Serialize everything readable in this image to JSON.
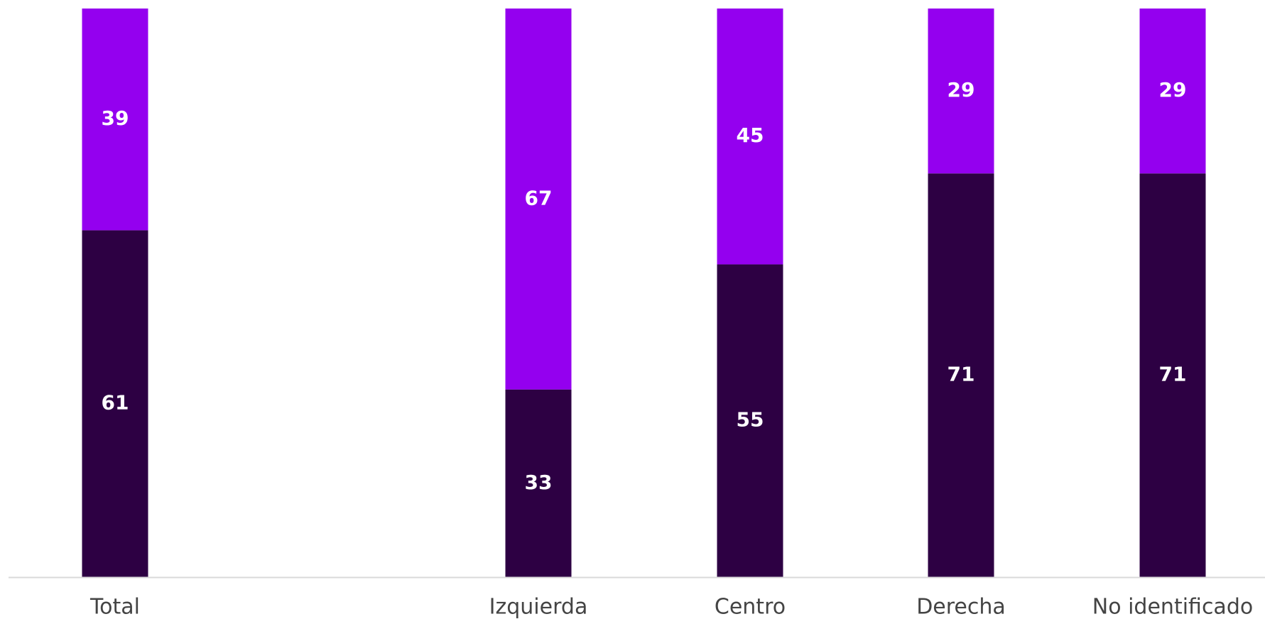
{
  "chart_data": {
    "type": "bar",
    "stacked": true,
    "categories": [
      "Total",
      "Izquierda",
      "Centro",
      "Derecha",
      "No identificado"
    ],
    "series": [
      {
        "values": [
          61,
          33,
          55,
          71,
          71
        ],
        "color": "#2D0043"
      },
      {
        "values": [
          39,
          67,
          45,
          29,
          29
        ],
        "color": "#9400EF"
      }
    ],
    "ylim": [
      0,
      100
    ],
    "grid": false,
    "legend": "none"
  },
  "colors": {
    "background": "#FFFFFF",
    "baseline": "#D9D9D9",
    "bar_label": "#FFFFFF",
    "category_label": "#444444"
  }
}
